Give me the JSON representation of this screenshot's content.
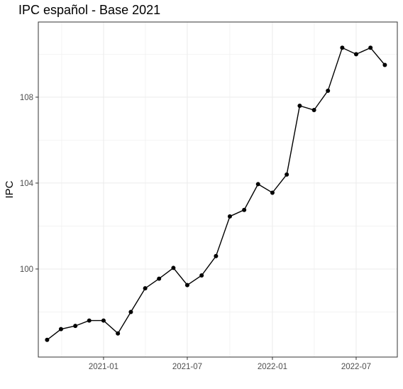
{
  "chart_data": {
    "type": "line",
    "title": "IPC español - Base 2021",
    "xlabel": "",
    "ylabel": "IPC",
    "x": [
      "2020-09",
      "2020-10",
      "2020-11",
      "2020-12",
      "2021-01",
      "2021-02",
      "2021-03",
      "2021-04",
      "2021-05",
      "2021-06",
      "2021-07",
      "2021-08",
      "2021-09",
      "2021-10",
      "2021-11",
      "2021-12",
      "2022-01",
      "2022-02",
      "2022-03",
      "2022-04",
      "2022-05",
      "2022-06",
      "2022-07",
      "2022-08",
      "2022-09"
    ],
    "series": [
      {
        "name": "",
        "values": [
          96.7,
          97.2,
          97.35,
          97.6,
          97.6,
          97.0,
          98.0,
          99.1,
          99.55,
          100.05,
          99.25,
          99.7,
          100.6,
          102.45,
          102.75,
          103.95,
          103.55,
          104.4,
          107.6,
          107.4,
          108.3,
          110.3,
          110.0,
          110.3,
          109.5
        ]
      }
    ],
    "xlim": [
      "2020-08-13",
      "2022-09-28"
    ],
    "ylim": [
      95.9,
      111.5
    ],
    "x_tick_labels": [
      "2021-01",
      "2021-07",
      "2022-01",
      "2022-07"
    ],
    "x_tick_values": [
      "2021-01-01",
      "2021-07-01",
      "2022-01-01",
      "2022-07-01"
    ],
    "y_ticks": [
      100,
      104,
      108
    ],
    "grid": true,
    "legend": "none",
    "colors": {
      "line": "#000000",
      "grid": "#ebebeb",
      "panel_border": "#333333",
      "tick_text": "#4d4d4d"
    }
  }
}
